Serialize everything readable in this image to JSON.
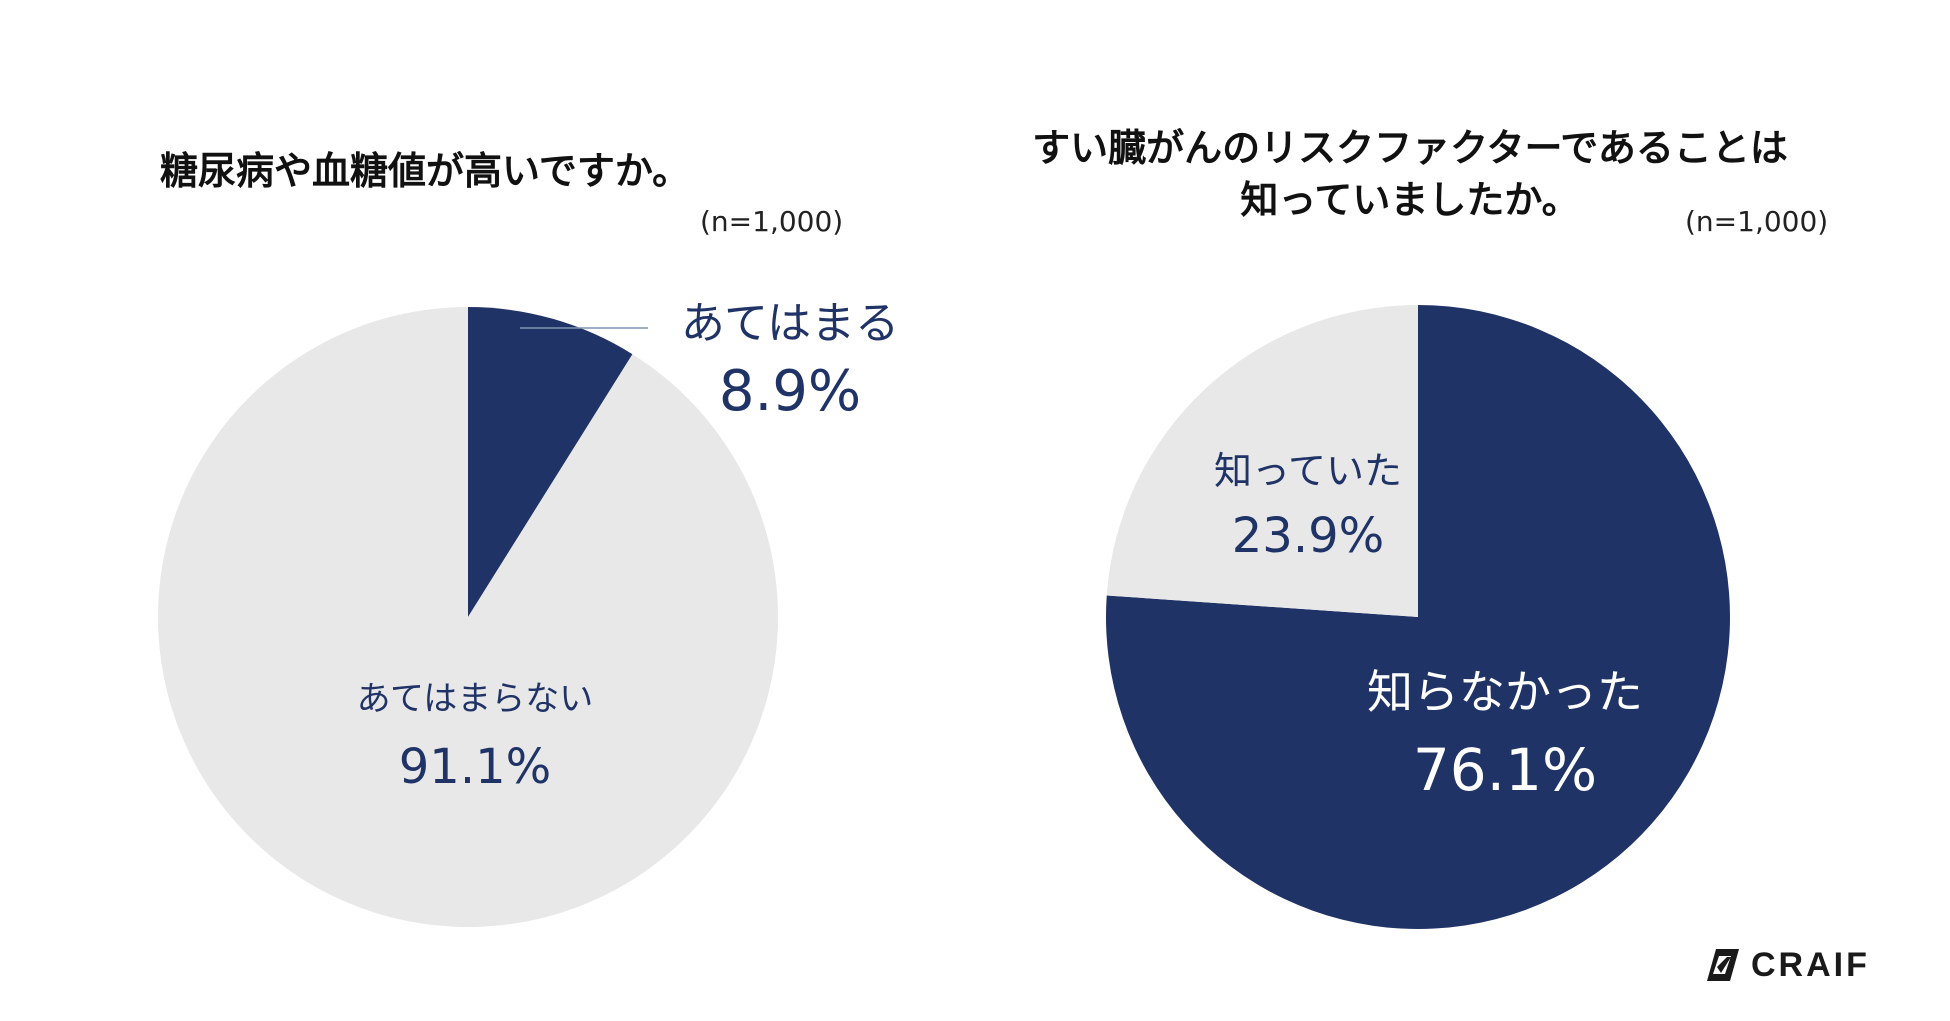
{
  "chart_data": [
    {
      "type": "pie",
      "title": "糖尿病や血糖値が高いですか。",
      "sample": "(n=1,000)",
      "start_angle_deg": 0,
      "slices": [
        {
          "label": "あてはまる",
          "value": 8.9,
          "value_label": "8.9%",
          "color": "#203366",
          "text_color": "#203366"
        },
        {
          "label": "あてはまらない",
          "value": 91.1,
          "value_label": "91.1%",
          "color": "#e8e8e8",
          "text_color": "#203366"
        }
      ]
    },
    {
      "type": "pie",
      "title": "すい臓がんのリスクファクターであることは\n知っていましたか。",
      "title_lines": [
        "すい臓がんのリスクファクターであることは",
        "知っていましたか。"
      ],
      "sample": "(n=1,000)",
      "start_angle_deg": 0,
      "slices": [
        {
          "label": "知らなかった",
          "value": 76.1,
          "value_label": "76.1%",
          "color": "#203366",
          "text_color": "#ffffff"
        },
        {
          "label": "知っていた",
          "value": 23.9,
          "value_label": "23.9%",
          "color": "#e8e8e8",
          "text_color": "#203366"
        }
      ]
    }
  ],
  "brand": {
    "name": "CRAIF",
    "color": "#1a1a1a"
  }
}
